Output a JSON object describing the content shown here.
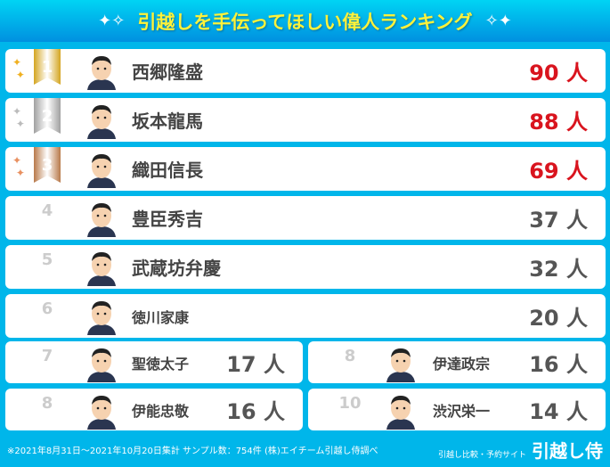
{
  "title": "引越しを手伝ってほしい偉人ランキング",
  "colors": {
    "gold": "#d4a520",
    "silver": "#a0a0a0",
    "bronze": "#b8794a",
    "top_value": "#d9141e",
    "background": "#00b6ea"
  },
  "ranking": [
    {
      "rank": "1",
      "name": "西郷隆盛",
      "value": "90 人"
    },
    {
      "rank": "2",
      "name": "坂本龍馬",
      "value": "88 人"
    },
    {
      "rank": "3",
      "name": "織田信長",
      "value": "69 人"
    },
    {
      "rank": "4",
      "name": "豊臣秀吉",
      "value": "37 人"
    },
    {
      "rank": "5",
      "name": "武蔵坊弁慶",
      "value": "32 人"
    },
    {
      "rank": "6",
      "name": "徳川家康",
      "value": "20 人"
    },
    {
      "rank": "7",
      "name": "聖徳太子",
      "value": "17 人"
    },
    {
      "rank": "8",
      "name": "伊達政宗",
      "value": "16 人"
    },
    {
      "rank": "8",
      "name": "伊能忠敬",
      "value": "16 人"
    },
    {
      "rank": "10",
      "name": "渋沢栄一",
      "value": "14 人"
    }
  ],
  "footer": {
    "note": "※2021年8月31日〜2021年10月20日集計 サンプル数：754件 (株)エイチーム引越し侍調べ",
    "brand_sub": "引越し比較・予約サイト",
    "brand": "引越し侍"
  }
}
